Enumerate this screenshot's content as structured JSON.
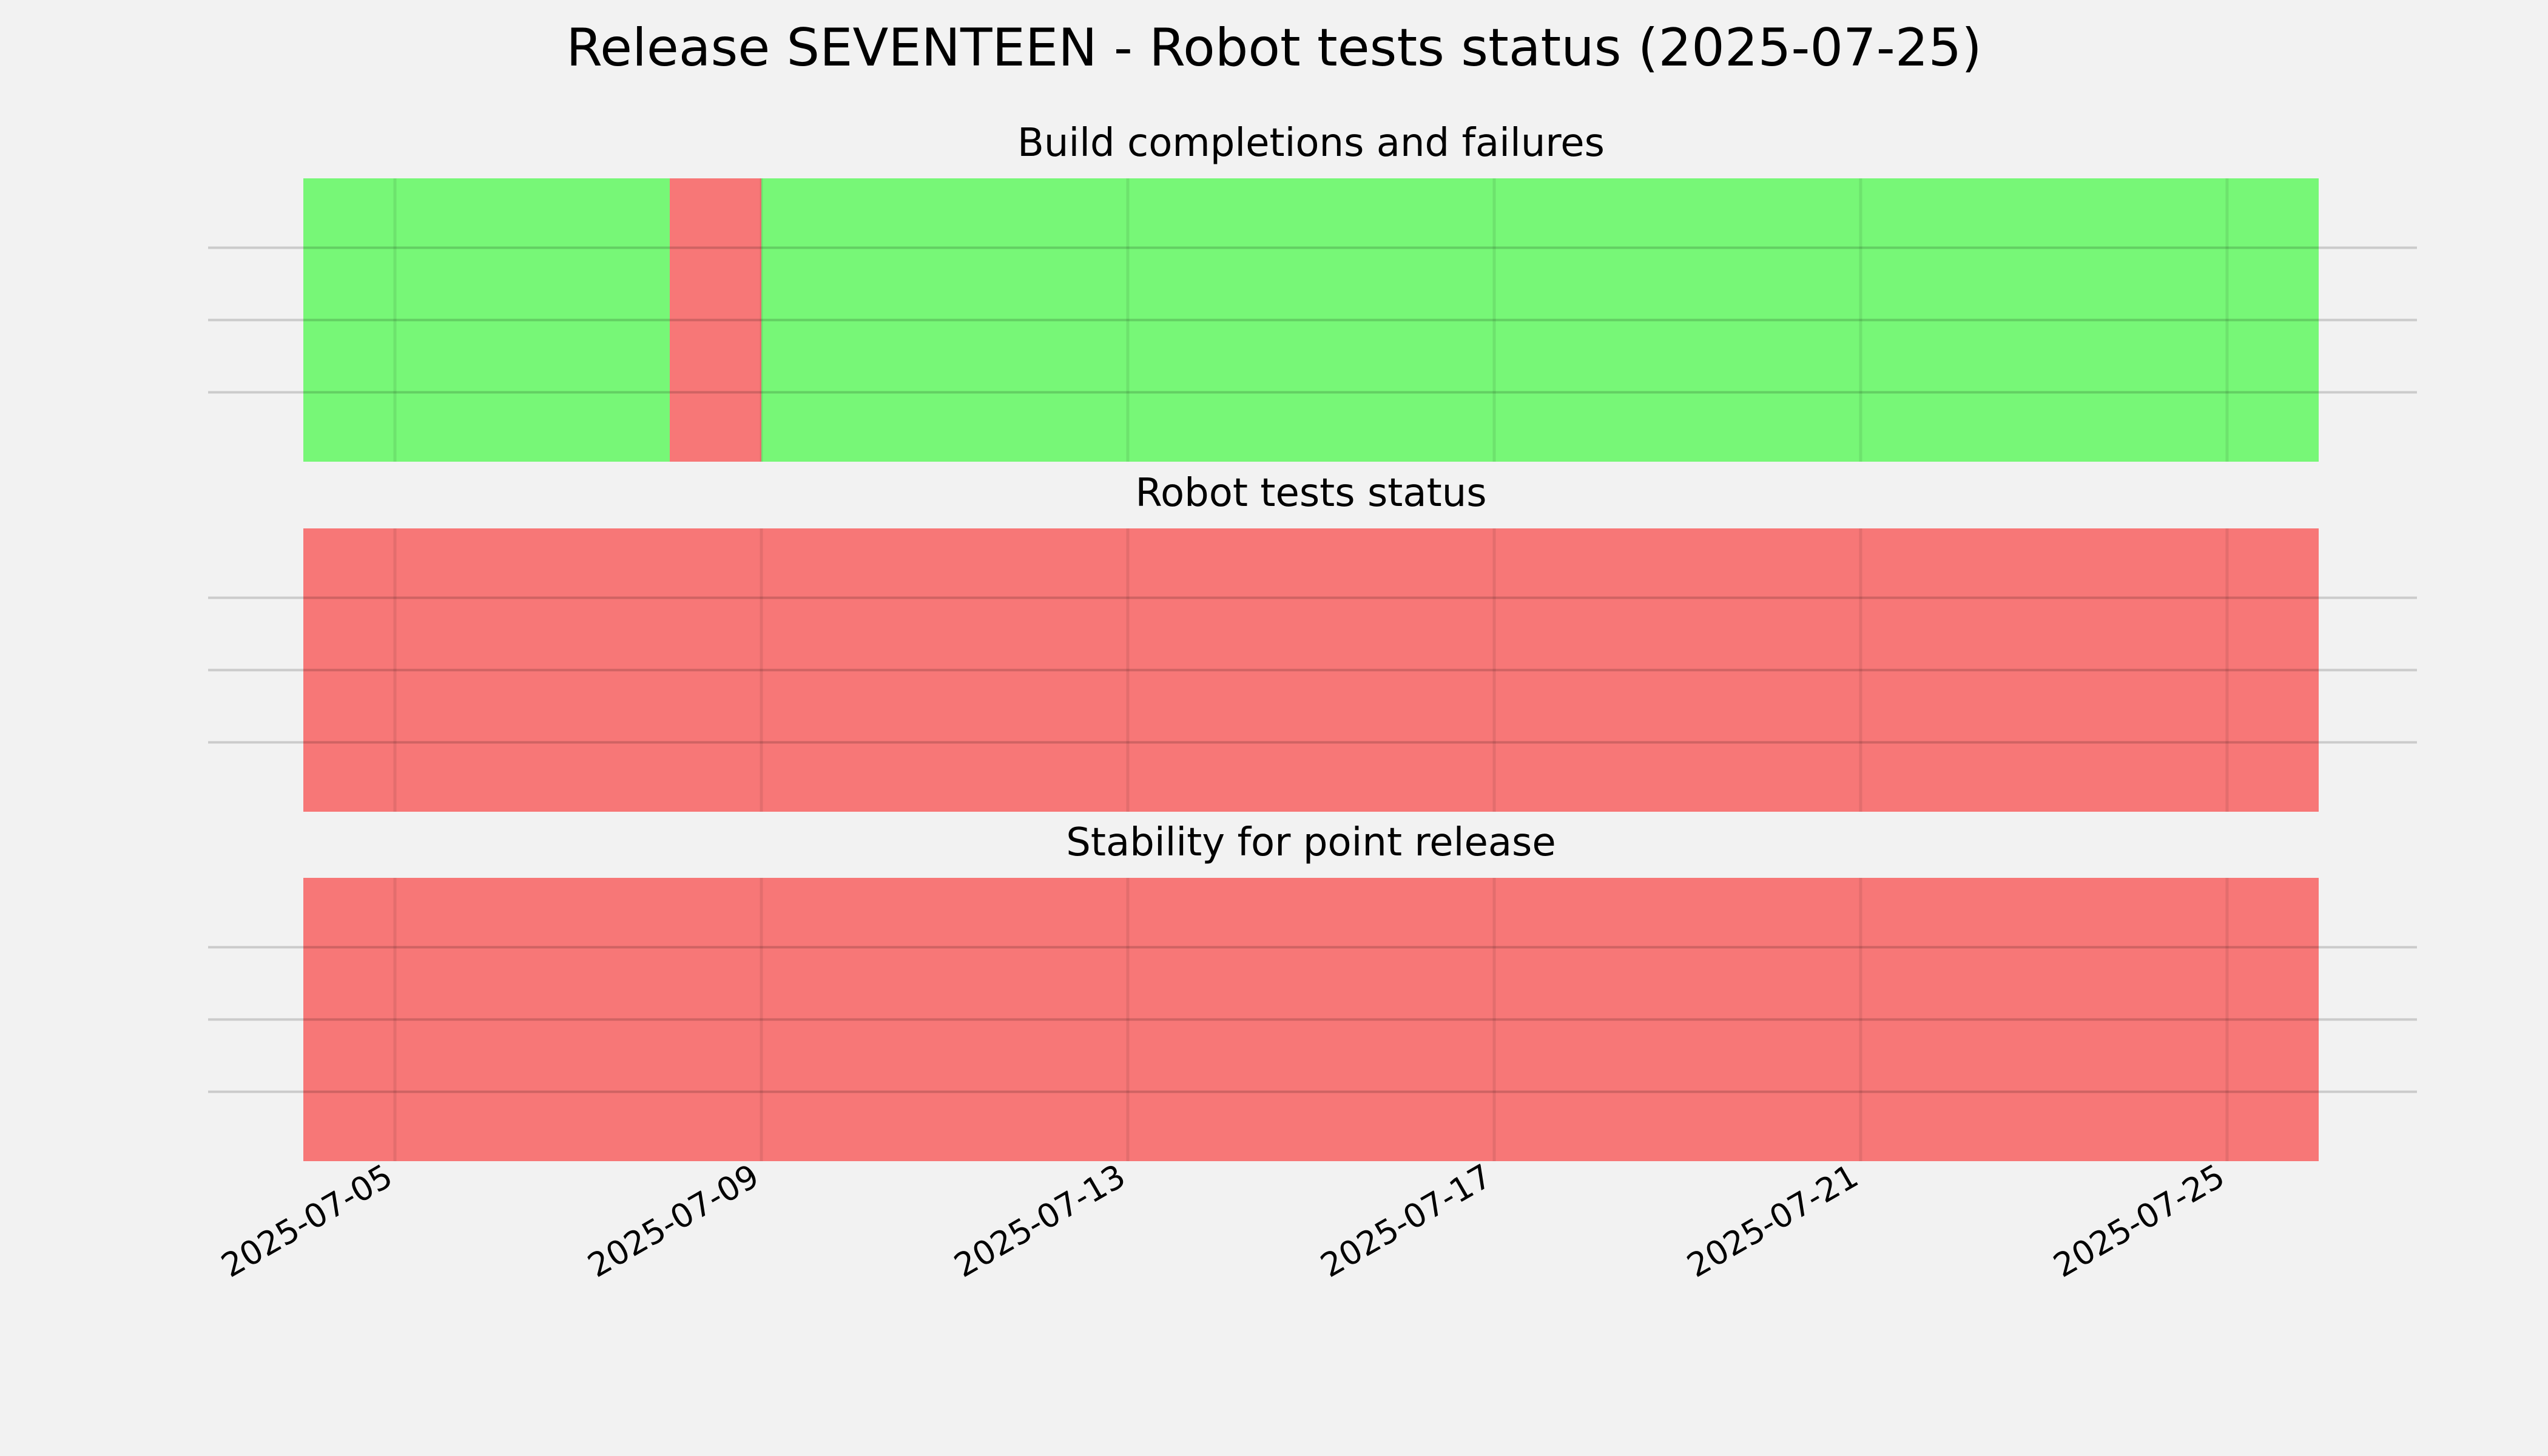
{
  "chart_data": {
    "type": "timeline",
    "title": "Release SEVENTEEN - Robot tests status (2025-07-25)",
    "x_range": [
      "2025-07-04",
      "2025-07-26"
    ],
    "x_ticks": [
      "2025-07-05",
      "2025-07-09",
      "2025-07-13",
      "2025-07-17",
      "2025-07-21",
      "2025-07-25"
    ],
    "grid": true,
    "colors": {
      "pass": "#77f777",
      "fail": "#f77777"
    },
    "panels": [
      {
        "title": "Build completions and failures",
        "segments": [
          {
            "start": "2025-07-04",
            "end": "2025-07-08",
            "status": "pass"
          },
          {
            "start": "2025-07-08",
            "end": "2025-07-09",
            "status": "fail"
          },
          {
            "start": "2025-07-09",
            "end": "2025-07-26",
            "status": "pass"
          }
        ]
      },
      {
        "title": "Robot tests status",
        "segments": [
          {
            "start": "2025-07-04",
            "end": "2025-07-26",
            "status": "fail"
          }
        ]
      },
      {
        "title": "Stability for point release",
        "segments": [
          {
            "start": "2025-07-04",
            "end": "2025-07-26",
            "status": "fail"
          }
        ]
      }
    ]
  }
}
